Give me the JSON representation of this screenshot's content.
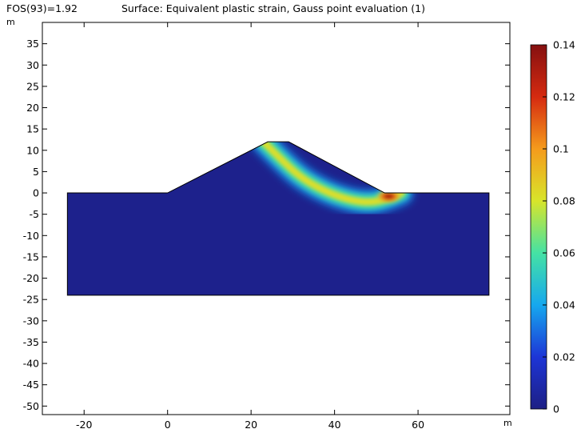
{
  "chart_data": {
    "type": "heatmap",
    "title_left": "FOS(93)=1.92",
    "title": "Surface: Equivalent plastic strain, Gauss point evaluation (1)",
    "xlabel": "m",
    "ylabel": "m",
    "xlim": [
      -30,
      82
    ],
    "ylim": [
      -52,
      40
    ],
    "xticks": [
      "-20",
      "0",
      "20",
      "40",
      "60"
    ],
    "xtick_values": [
      -20,
      0,
      20,
      40,
      60
    ],
    "yticks": [
      "35",
      "30",
      "25",
      "20",
      "15",
      "10",
      "5",
      "0",
      "-5",
      "-10",
      "-15",
      "-20",
      "-25",
      "-30",
      "-35",
      "-40",
      "-45",
      "-50"
    ],
    "ytick_values": [
      35,
      30,
      25,
      20,
      15,
      10,
      5,
      0,
      -5,
      -10,
      -15,
      -20,
      -25,
      -30,
      -35,
      -40,
      -45,
      -50
    ],
    "geometry": {
      "outline": [
        [
          -24,
          0
        ],
        [
          0,
          0
        ],
        [
          24,
          12
        ],
        [
          29,
          12
        ],
        [
          52,
          0
        ],
        [
          77,
          0
        ],
        [
          77,
          -24
        ],
        [
          -24,
          -24
        ]
      ]
    },
    "band": {
      "path": [
        [
          23,
          12
        ],
        [
          27,
          8
        ],
        [
          32,
          3.5
        ],
        [
          38,
          0.2
        ],
        [
          44,
          -1.8
        ],
        [
          49,
          -2.3
        ],
        [
          53,
          -1.2
        ],
        [
          56,
          0
        ]
      ],
      "peak": {
        "x": 53,
        "y": -0.8
      }
    },
    "background_value": 0.002,
    "colorbar": {
      "min": 0,
      "max": 0.14,
      "ticks": [
        "0.14",
        "0.12",
        "0.1",
        "0.08",
        "0.06",
        "0.04",
        "0.02",
        "0"
      ],
      "tick_values": [
        0.14,
        0.12,
        0.1,
        0.08,
        0.06,
        0.04,
        0.02,
        0
      ],
      "colormap": "rainbow",
      "colors": [
        "#1d1f84",
        "#1d35d6",
        "#16a8ee",
        "#45e2a4",
        "#d8e52a",
        "#f59b1c",
        "#d52a10",
        "#851010"
      ]
    }
  }
}
